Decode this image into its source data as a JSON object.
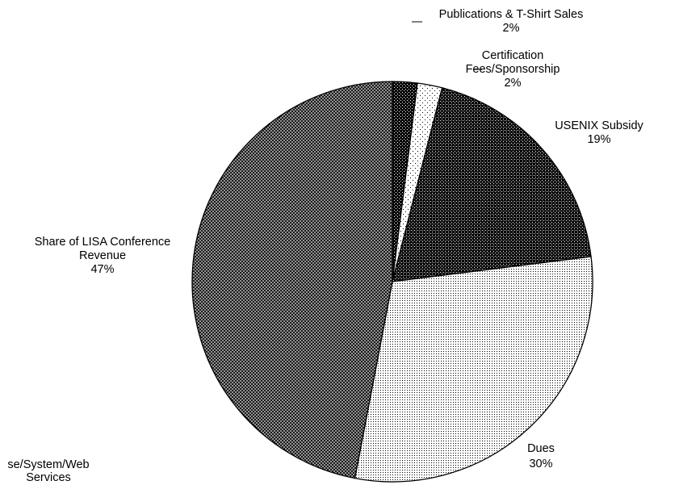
{
  "chart_data": {
    "type": "pie",
    "title": "",
    "slices": [
      {
        "label": "Publications & T-Shirt Sales",
        "value": 2,
        "pct_text": "2%",
        "pattern": "dense-dots"
      },
      {
        "label": "Certification Fees/Sponsorship",
        "value": 2,
        "pct_text": "2%",
        "pattern": "sparse-dots"
      },
      {
        "label": "USENIX Subsidy",
        "value": 19,
        "pct_text": "19%",
        "pattern": "dark-dots"
      },
      {
        "label": "Dues",
        "value": 30,
        "pct_text": "30%",
        "pattern": "fine-dots"
      },
      {
        "label": "Database/System/Web Services",
        "value": 0,
        "pct_text": "",
        "pattern": "none"
      },
      {
        "label": "Share of LISA Conference Revenue",
        "value": 47,
        "pct_text": "47%",
        "pattern": "crosshatch"
      }
    ],
    "labels": [
      {
        "lines": [
          "Publications & T-Shirt Sales",
          "2%"
        ]
      },
      {
        "lines": [
          "Certification",
          "Fees/Sponsorship",
          "2%"
        ]
      },
      {
        "lines": [
          "USENIX Subsidy",
          "19%"
        ]
      },
      {
        "lines": [
          "Dues",
          "30%"
        ]
      },
      {
        "lines": [
          "se/System/Web",
          "Services"
        ]
      },
      {
        "lines": [
          "Share of LISA Conference",
          "Revenue",
          "47%"
        ]
      }
    ],
    "start_angle_deg": 0,
    "direction": "clockwise"
  }
}
